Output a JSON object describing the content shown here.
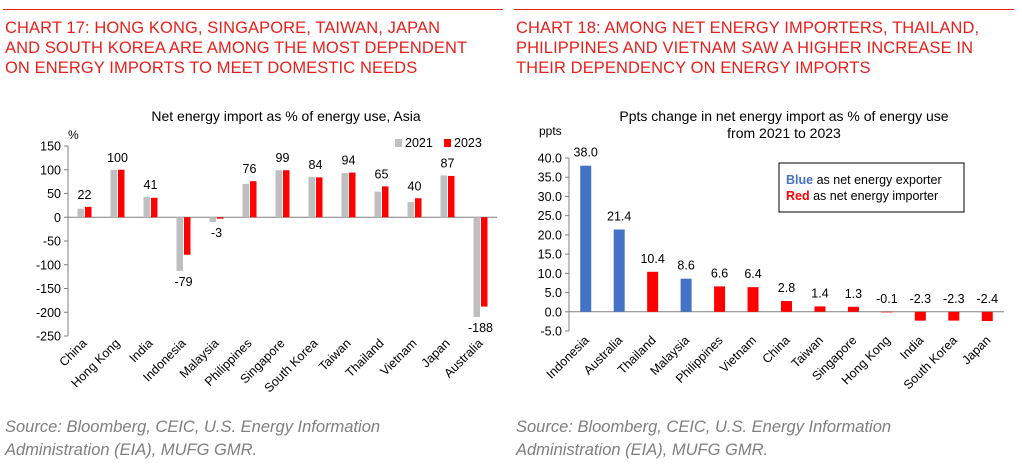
{
  "left": {
    "heading_lines": [
      "CHART 17: HONG KONG, SINGAPORE, TAIWAN, JAPAN",
      "AND SOUTH KOREA ARE AMONG THE MOST DEPENDENT",
      "ON ENERGY IMPORTS TO MEET DOMESTIC NEEDS"
    ],
    "source_lines": [
      "Source: Bloomberg, CEIC, U.S. Energy Information",
      "Administration (EIA), MUFG GMR."
    ]
  },
  "right": {
    "heading_lines": [
      "CHART 18: AMONG NET ENERGY IMPORTERS, THAILAND,",
      "PHILIPPINES AND VIETNAM SAW A HIGHER INCREASE IN",
      "THEIR DEPENDENCY ON ENERGY IMPORTS"
    ],
    "source_lines": [
      "Source: Bloomberg, CEIC, U.S. Energy Information",
      "Administration (EIA), MUFG GMR."
    ]
  },
  "chart_data": [
    {
      "type": "bar",
      "title": "Net energy import as % of energy use, Asia",
      "ylabel": "%",
      "ylim": [
        -250,
        150
      ],
      "yticks": [
        -250,
        -200,
        -150,
        -100,
        -50,
        0,
        50,
        100,
        150
      ],
      "categories": [
        "China",
        "Hong Kong",
        "India",
        "Indonesia",
        "Malaysia",
        "Philippines",
        "Singapore",
        "South Korea",
        "Taiwan",
        "Thailand",
        "Vietnam",
        "Japan",
        "Australia"
      ],
      "series": [
        {
          "name": "2021",
          "color": "#bfbfbf",
          "values": [
            18,
            100,
            43,
            -113,
            -10,
            70,
            99,
            85,
            93,
            54,
            32,
            88,
            -210
          ]
        },
        {
          "name": "2023",
          "color": "#ff0000",
          "values": [
            22,
            100,
            41,
            -79,
            -3,
            76,
            99,
            84,
            94,
            65,
            40,
            87,
            -188
          ]
        }
      ],
      "data_labels": [
        "22",
        "100",
        "41",
        "-79",
        "-3",
        "76",
        "99",
        "84",
        "94",
        "65",
        "40",
        "87",
        "-188"
      ],
      "legend": "top-right",
      "grid": false
    },
    {
      "type": "bar",
      "title": "Ppts change in net energy import as % of energy use from 2021 to 2023",
      "title_lines": [
        "Ppts change in net energy import as % of energy use",
        "from 2021 to 2023"
      ],
      "ylabel": "ppts",
      "ylim": [
        -5,
        40
      ],
      "yticks": [
        -5.0,
        0.0,
        5.0,
        10.0,
        15.0,
        20.0,
        25.0,
        30.0,
        35.0,
        40.0
      ],
      "ytick_labels": [
        "-5.0",
        "0.0",
        "5.0",
        "10.0",
        "15.0",
        "20.0",
        "25.0",
        "30.0",
        "35.0",
        "40.0"
      ],
      "categories": [
        "Indonesia",
        "Australia",
        "Thailand",
        "Malaysia",
        "Philippines",
        "Vietnam",
        "China",
        "Taiwan",
        "Singapore",
        "Hong Kong",
        "India",
        "South Korea",
        "Japan"
      ],
      "values": [
        38.0,
        21.4,
        10.4,
        8.6,
        6.6,
        6.4,
        2.8,
        1.4,
        1.3,
        -0.1,
        -2.3,
        -2.3,
        -2.4
      ],
      "data_labels": [
        "38.0",
        "21.4",
        "10.4",
        "8.6",
        "6.6",
        "6.4",
        "2.8",
        "1.4",
        "1.3",
        "-0.1",
        "-2.3",
        "-2.3",
        "-2.4"
      ],
      "groups": [
        "exporter",
        "exporter",
        "importer",
        "exporter",
        "importer",
        "importer",
        "importer",
        "importer",
        "importer",
        "importer",
        "importer",
        "importer",
        "importer"
      ],
      "colors": {
        "exporter": "#4472c4",
        "importer": "#ff0000"
      },
      "legend_box": {
        "blue_word": "Blue",
        "blue_rest": " as net energy exporter",
        "red_word": "Red",
        "red_rest": " as net energy importer"
      },
      "legend": "top-right",
      "grid": false
    }
  ]
}
